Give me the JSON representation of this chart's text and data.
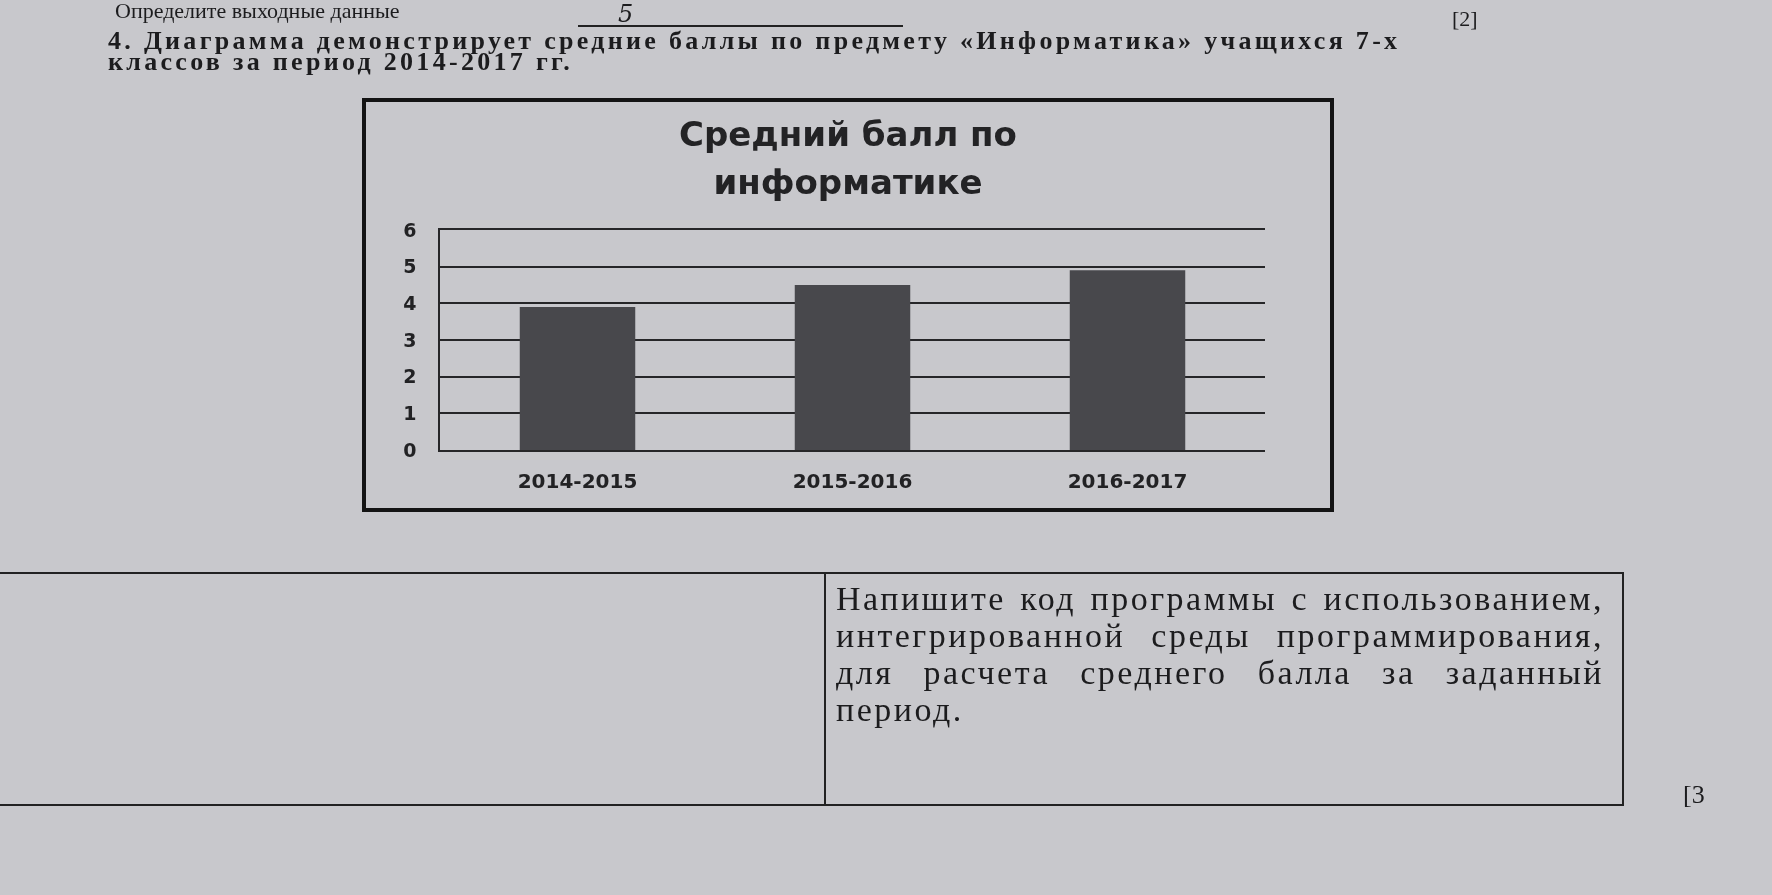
{
  "chart_data": {
    "type": "bar",
    "title": "Средний балл по информатике",
    "categories": [
      "2014-2015",
      "2015-2016",
      "2016-2017"
    ],
    "values": [
      3.9,
      4.5,
      4.9
    ],
    "color": "#48484c",
    "ylim": [
      0,
      6
    ],
    "yticks": [
      0,
      1,
      2,
      3,
      4,
      5,
      6
    ],
    "grid": "y",
    "annotations": [
      "Определите выходные данные",
      "5",
      "[2]",
      "4. Диаграмма демонстрирует средние баллы по предмету «Информатика» учащихся 7-х классов за период 2014-2017 гг.",
      "Напишите код программы с использованием, интегрированной среды программирования, для расчета среднего балла за заданный период.",
      "[3"
    ]
  }
}
